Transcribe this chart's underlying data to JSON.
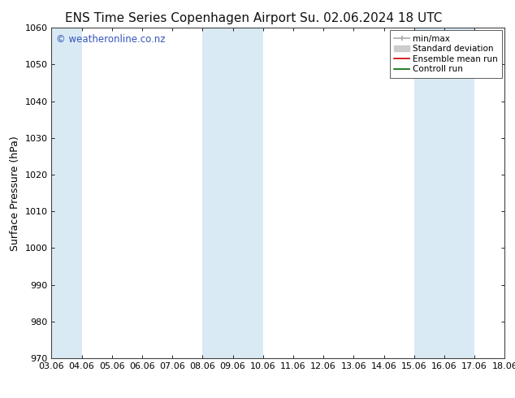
{
  "title_left": "ENS Time Series Copenhagen Airport",
  "title_right": "Su. 02.06.2024 18 UTC",
  "ylabel": "Surface Pressure (hPa)",
  "ylim": [
    970,
    1060
  ],
  "yticks": [
    970,
    980,
    990,
    1000,
    1010,
    1020,
    1030,
    1040,
    1050,
    1060
  ],
  "xlim": [
    0,
    15
  ],
  "xtick_labels": [
    "03.06",
    "04.06",
    "05.06",
    "06.06",
    "07.06",
    "08.06",
    "09.06",
    "10.06",
    "11.06",
    "12.06",
    "13.06",
    "14.06",
    "15.06",
    "16.06",
    "17.06",
    "18.06"
  ],
  "xtick_positions": [
    0,
    1,
    2,
    3,
    4,
    5,
    6,
    7,
    8,
    9,
    10,
    11,
    12,
    13,
    14,
    15
  ],
  "shaded_regions": [
    {
      "xmin": 0,
      "xmax": 1,
      "color": "#daeaf5"
    },
    {
      "xmin": 5,
      "xmax": 7,
      "color": "#daeaf5"
    },
    {
      "xmin": 12,
      "xmax": 14,
      "color": "#daeaf5"
    }
  ],
  "watermark": "© weatheronline.co.nz",
  "watermark_color": "#3355bb",
  "background_color": "#ffffff",
  "legend_items": [
    {
      "label": "min/max",
      "color": "#aaaaaa",
      "lw": 1.2
    },
    {
      "label": "Standard deviation",
      "color": "#cccccc",
      "lw": 6
    },
    {
      "label": "Ensemble mean run",
      "color": "#cc0000",
      "lw": 1.2
    },
    {
      "label": "Controll run",
      "color": "#006600",
      "lw": 1.2
    }
  ],
  "title_fontsize": 11,
  "watermark_fontsize": 8.5,
  "axis_label_fontsize": 9,
  "tick_fontsize": 8,
  "legend_fontsize": 7.5
}
